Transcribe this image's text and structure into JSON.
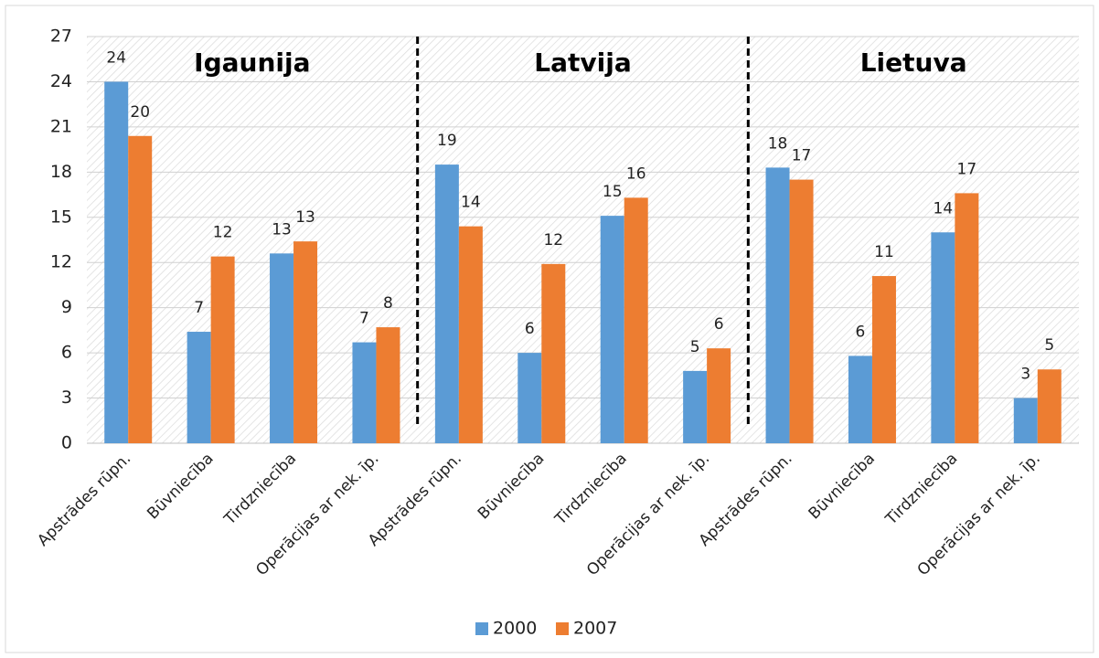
{
  "chart_data": {
    "type": "bar",
    "categories": [
      "Apstrādes rūpn.",
      "Būvniecība",
      "Tirdzniecība",
      "Operācijas ar nek. īp.",
      "Apstrādes rūpn.",
      "Būvniecība",
      "Tirdzniecība",
      "Operācijas ar nek. īp.",
      "Apstrādes rūpn.",
      "Būvniecība",
      "Tirdzniecība",
      "Operācijas ar nek. īp."
    ],
    "group_labels": [
      "Igaunija",
      "Latvija",
      "Lietuva"
    ],
    "series": [
      {
        "name": "2000",
        "color": "#5b9bd5",
        "values": [
          24.0,
          7.4,
          12.6,
          6.7,
          18.5,
          6.0,
          15.1,
          4.8,
          18.3,
          5.8,
          14.0,
          3.0
        ],
        "value_labels": [
          "24",
          "7",
          "13",
          "7",
          "19",
          "6",
          "15",
          "5",
          "18",
          "6",
          "14",
          "3"
        ]
      },
      {
        "name": "2007",
        "color": "#ed7d31",
        "values": [
          20.4,
          12.4,
          13.4,
          7.7,
          14.4,
          11.9,
          16.3,
          6.3,
          17.5,
          11.1,
          16.6,
          4.9
        ],
        "value_labels": [
          "20",
          "12",
          "13",
          "8",
          "14",
          "12",
          "16",
          "6",
          "17",
          "11",
          "17",
          "5"
        ]
      }
    ],
    "ylim": [
      0,
      27
    ],
    "yticks": [
      0,
      3,
      6,
      9,
      12,
      15,
      18,
      21,
      24,
      27
    ],
    "grid": true,
    "legend": "bottom"
  }
}
